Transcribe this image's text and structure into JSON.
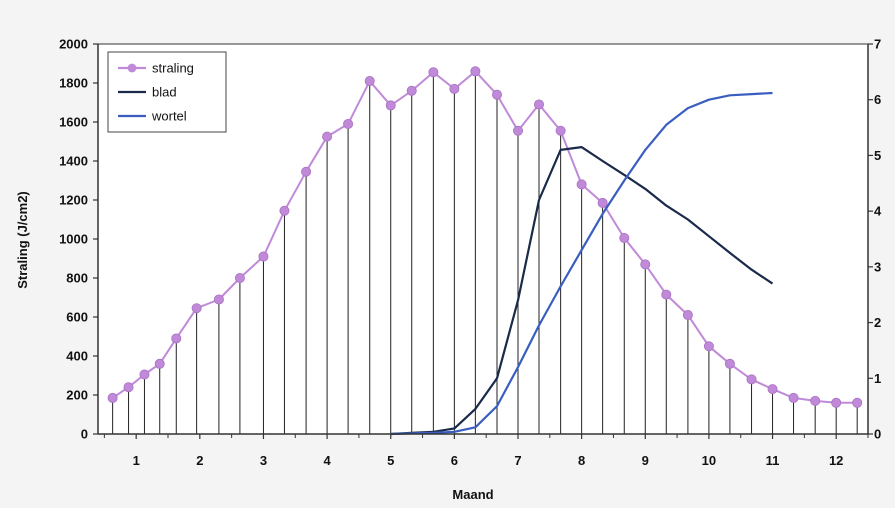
{
  "chart_data": {
    "type": "line",
    "title": "",
    "xlabel": "Maand",
    "ylabel": "Straling (J/cm2)",
    "xlim": [
      0.4,
      12.5
    ],
    "ylim": [
      0,
      2000
    ],
    "y2lim": [
      0,
      7
    ],
    "x_ticks": [
      "1",
      "2",
      "3",
      "4",
      "5",
      "6",
      "7",
      "8",
      "9",
      "10",
      "11",
      "12"
    ],
    "y_ticks": [
      "0",
      "200",
      "400",
      "600",
      "800",
      "1000",
      "1200",
      "1400",
      "1600",
      "1800",
      "2000"
    ],
    "y2_ticks": [
      "0",
      "1",
      "2",
      "3",
      "4",
      "5",
      "6",
      "7"
    ],
    "legend": {
      "position": "top-left",
      "entries": [
        "straling",
        "blad",
        "wortel"
      ]
    },
    "grid": false,
    "colors": {
      "straling": "#c08ad8",
      "blad": "#1a2a4a",
      "wortel": "#3a5ec0",
      "droplines": "#222222",
      "axes": "#333333"
    },
    "series": [
      {
        "name": "straling",
        "axis": "left",
        "style": "markers-with-droplines",
        "x": [
          0.63,
          0.88,
          1.13,
          1.37,
          1.63,
          1.95,
          2.3,
          2.63,
          3.0,
          3.33,
          3.67,
          4.0,
          4.33,
          4.67,
          5.0,
          5.33,
          5.67,
          6.0,
          6.33,
          6.67,
          7.0,
          7.33,
          7.67,
          8.0,
          8.33,
          8.67,
          9.0,
          9.33,
          9.67,
          10.0,
          10.33,
          10.67,
          11.0,
          11.33,
          11.67,
          12.0,
          12.33
        ],
        "values": [
          185,
          240,
          305,
          360,
          490,
          645,
          690,
          800,
          910,
          1145,
          1345,
          1525,
          1590,
          1810,
          1685,
          1760,
          1855,
          1770,
          1860,
          1740,
          1555,
          1690,
          1555,
          1280,
          1185,
          1005,
          870,
          715,
          610,
          450,
          360,
          280,
          230,
          185,
          170,
          160,
          160
        ]
      },
      {
        "name": "blad",
        "axis": "right",
        "x": [
          5.0,
          5.33,
          5.67,
          6.0,
          6.33,
          6.67,
          7.0,
          7.33,
          7.67,
          8.0,
          8.33,
          8.67,
          9.0,
          9.33,
          9.67,
          10.0,
          10.33,
          10.67,
          11.0
        ],
        "values": [
          0,
          0.02,
          0.04,
          0.1,
          0.45,
          1.0,
          2.4,
          4.2,
          5.1,
          5.15,
          4.9,
          4.65,
          4.4,
          4.1,
          3.85,
          3.55,
          3.25,
          2.95,
          2.7
        ]
      },
      {
        "name": "wortel",
        "axis": "right",
        "x": [
          5.0,
          5.33,
          5.67,
          6.0,
          6.33,
          6.67,
          7.0,
          7.33,
          7.67,
          8.0,
          8.33,
          8.67,
          9.0,
          9.33,
          9.67,
          10.0,
          10.33,
          10.67,
          11.0
        ],
        "values": [
          0,
          0.01,
          0.02,
          0.04,
          0.12,
          0.5,
          1.2,
          1.95,
          2.65,
          3.3,
          3.95,
          4.55,
          5.1,
          5.55,
          5.85,
          6.0,
          6.08,
          6.1,
          6.12
        ]
      }
    ]
  }
}
